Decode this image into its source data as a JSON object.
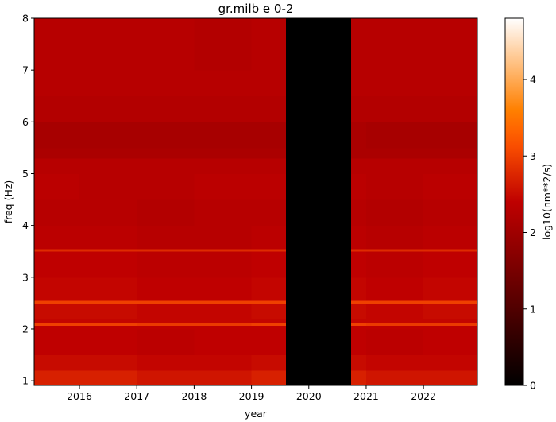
{
  "chart_data": {
    "type": "heatmap",
    "title": "gr.milb e 0-2",
    "xlabel": "year",
    "ylabel": "freq (Hz)",
    "colorbar_label": "log10(nm**2/s)",
    "colormap": "gist_heat",
    "xlim": [
      2015.21,
      2022.94
    ],
    "ylim": [
      0.91,
      8
    ],
    "xticks": [
      2016,
      2017,
      2018,
      2019,
      2020,
      2021,
      2022
    ],
    "yticks": [
      1,
      2,
      3,
      4,
      5,
      6,
      7,
      8
    ],
    "clim": [
      0,
      4.8
    ],
    "cticks": [
      0,
      1,
      2,
      3,
      4
    ],
    "xbins": [
      2015.21,
      2016,
      2017,
      2018,
      2019,
      2019.6,
      2020.74,
      2021,
      2022,
      2022.94
    ],
    "ybins": [
      0.91,
      1.2,
      1.5,
      2.0,
      2.07,
      2.13,
      2.2,
      2.5,
      2.55,
      3.0,
      3.5,
      3.55,
      4.0,
      4.5,
      5.0,
      5.3,
      5.5,
      6.0,
      6.5,
      7.0,
      8.0
    ],
    "z": [
      [
        2.7,
        2.7,
        2.6,
        2.6,
        2.7,
        0,
        2.7,
        2.6,
        2.6
      ],
      [
        2.5,
        2.5,
        2.45,
        2.45,
        2.5,
        0,
        2.5,
        2.45,
        2.45
      ],
      [
        2.4,
        2.4,
        2.35,
        2.4,
        2.4,
        0,
        2.4,
        2.35,
        2.4
      ],
      [
        2.4,
        2.4,
        2.4,
        2.4,
        2.4,
        0,
        2.4,
        2.4,
        2.4
      ],
      [
        3.0,
        3.0,
        2.95,
        2.95,
        3.0,
        0,
        3.0,
        2.95,
        2.95
      ],
      [
        2.45,
        2.45,
        2.45,
        2.45,
        2.45,
        0,
        2.45,
        2.45,
        2.45
      ],
      [
        2.5,
        2.5,
        2.45,
        2.45,
        2.5,
        0,
        2.5,
        2.45,
        2.5
      ],
      [
        3.0,
        3.0,
        3.0,
        3.0,
        3.0,
        0,
        3.0,
        3.0,
        3.0
      ],
      [
        2.45,
        2.45,
        2.4,
        2.4,
        2.45,
        0,
        2.45,
        2.4,
        2.45
      ],
      [
        2.4,
        2.4,
        2.35,
        2.35,
        2.4,
        0,
        2.4,
        2.35,
        2.4
      ],
      [
        2.8,
        2.8,
        2.8,
        2.8,
        2.8,
        0,
        2.8,
        2.8,
        2.8
      ],
      [
        2.35,
        2.35,
        2.3,
        2.3,
        2.35,
        0,
        2.35,
        2.3,
        2.35
      ],
      [
        2.3,
        2.3,
        2.25,
        2.3,
        2.3,
        0,
        2.3,
        2.25,
        2.3
      ],
      [
        2.35,
        2.3,
        2.3,
        2.35,
        2.35,
        0,
        2.35,
        2.3,
        2.35
      ],
      [
        2.3,
        2.3,
        2.3,
        2.3,
        2.3,
        0,
        2.3,
        2.3,
        2.3
      ],
      [
        2.15,
        2.15,
        2.15,
        2.15,
        2.15,
        0,
        2.15,
        2.15,
        2.15
      ],
      [
        2.1,
        2.1,
        2.1,
        2.1,
        2.1,
        0,
        2.15,
        2.1,
        2.1
      ],
      [
        2.25,
        2.25,
        2.25,
        2.25,
        2.25,
        0,
        2.25,
        2.25,
        2.25
      ],
      [
        2.3,
        2.3,
        2.3,
        2.3,
        2.3,
        0,
        2.3,
        2.3,
        2.3
      ],
      [
        2.3,
        2.3,
        2.3,
        2.25,
        2.3,
        0,
        2.3,
        2.3,
        2.3
      ]
    ]
  }
}
